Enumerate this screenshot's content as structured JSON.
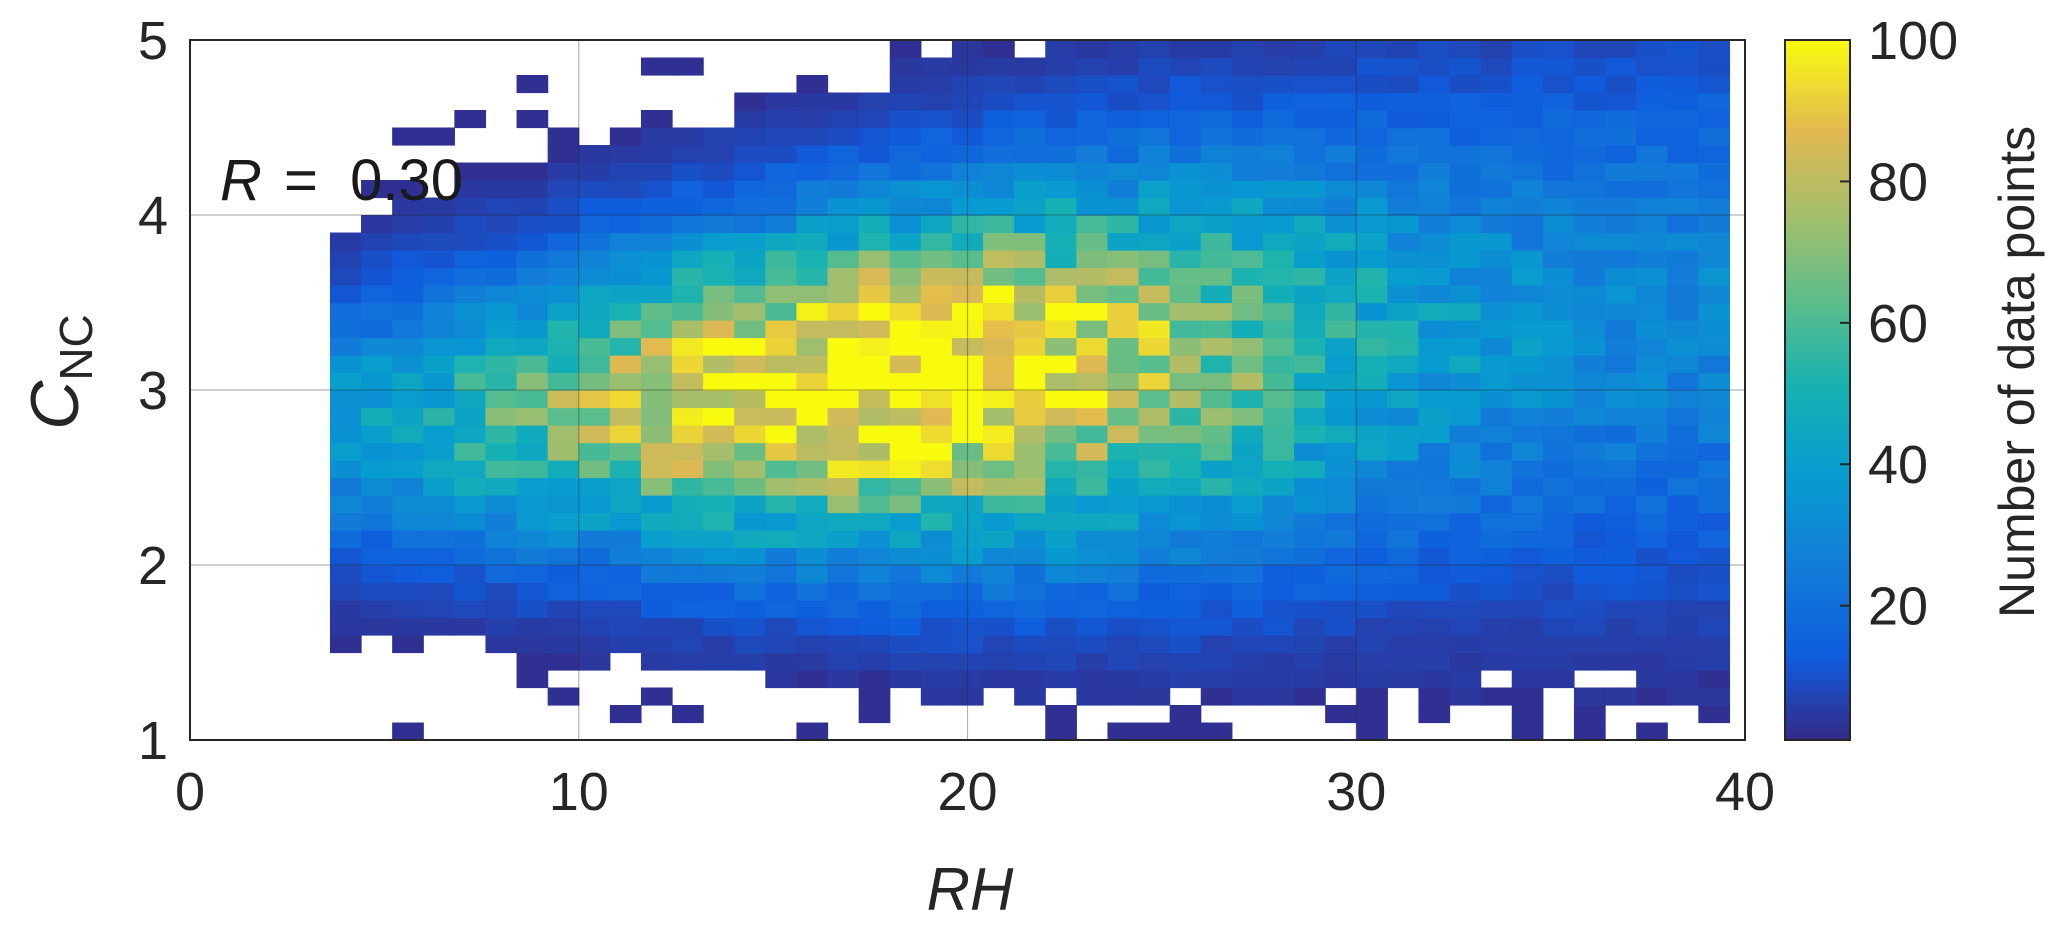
{
  "chart_data": {
    "type": "heatmap",
    "xlabel": "RH",
    "ylabel": "C",
    "ylabel_sub": "NC",
    "xlim": [
      0,
      40
    ],
    "ylim": [
      1,
      5
    ],
    "x_ticks": [
      "0",
      "10",
      "20",
      "30",
      "40"
    ],
    "y_ticks": [
      "1",
      "2",
      "3",
      "4",
      "5"
    ],
    "grid": true,
    "annotation": {
      "r_label": "R",
      "r_value": "=  0.30"
    },
    "colorbar": {
      "label": "Number of data points",
      "range": [
        1,
        100
      ],
      "ticks": [
        "20",
        "40",
        "60",
        "80",
        "100"
      ],
      "colormap": "parula"
    },
    "bins": {
      "x_width": 0.8,
      "y_height": 0.1
    },
    "density_model": {
      "peak_count": 100,
      "peak_x": 18.0,
      "peak_y": 2.85,
      "x_range_of_data": [
        3.6,
        39.6
      ],
      "y_range_of_data": [
        1.0,
        5.0
      ]
    }
  }
}
